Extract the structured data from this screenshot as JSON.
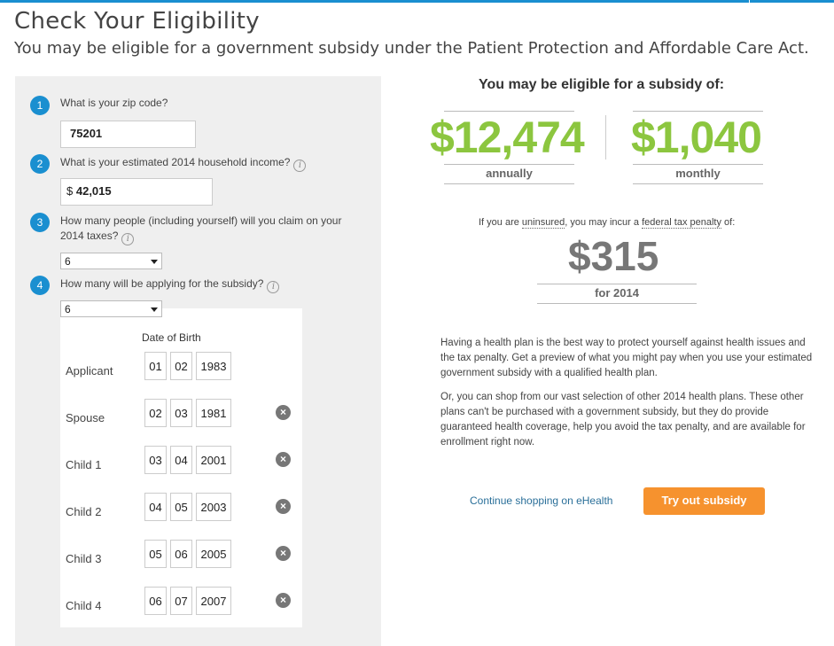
{
  "page": {
    "title": "Check Your Eligibility",
    "subtitle": "You may be eligible for a government subsidy under the Patient Protection and Affordable Care Act."
  },
  "form": {
    "q1": {
      "num": "1",
      "label": "What is your zip code?",
      "value": "75201"
    },
    "q2": {
      "num": "2",
      "label": "What is your estimated 2014 household income?",
      "currency": "$",
      "value": "42,015"
    },
    "q3": {
      "num": "3",
      "label_line1": "How many people (including yourself) will you claim on your",
      "label_line2": "2014 taxes?",
      "value": "6"
    },
    "q4": {
      "num": "4",
      "label": "How many will be applying for the subsidy?",
      "value": "6"
    },
    "info_glyph": "i",
    "dob_header": "Date of Birth",
    "remove_glyph": "×",
    "applicants": [
      {
        "label": "Applicant",
        "mm": "01",
        "dd": "02",
        "yyyy": "1983",
        "removable": false
      },
      {
        "label": "Spouse",
        "mm": "02",
        "dd": "03",
        "yyyy": "1981",
        "removable": true
      },
      {
        "label": "Child 1",
        "mm": "03",
        "dd": "04",
        "yyyy": "2001",
        "removable": true
      },
      {
        "label": "Child 2",
        "mm": "04",
        "dd": "05",
        "yyyy": "2003",
        "removable": true
      },
      {
        "label": "Child 3",
        "mm": "05",
        "dd": "06",
        "yyyy": "2005",
        "removable": true
      },
      {
        "label": "Child 4",
        "mm": "06",
        "dd": "07",
        "yyyy": "2007",
        "removable": true
      }
    ]
  },
  "result": {
    "heading": "You may be eligible for a subsidy of:",
    "annual_amount": "$12,474",
    "annual_label": "annually",
    "monthly_amount": "$1,040",
    "monthly_label": "monthly",
    "penalty_q_pre": "If you are ",
    "penalty_q_term": "uninsured",
    "penalty_q_mid": ", you may incur a ",
    "penalty_q_term2": "federal tax penalty",
    "penalty_q_post": " of:",
    "penalty_amount": "$315",
    "penalty_year": "for 2014",
    "para1": "Having a health plan is the best way to protect yourself against health issues and the tax penalty. Get a preview of what you might pay when you use your estimated government subsidy with a qualified health plan.",
    "para2": "Or, you can shop from our vast selection of other 2014 health plans. These other plans can't be purchased with a government subsidy, but they do provide guaranteed health coverage, help you avoid the tax penalty, and are available for enrollment right now.",
    "link": "Continue shopping on eHealth",
    "button": "Try out subsidy"
  },
  "colors": {
    "accent_blue": "#1a8fd0",
    "green": "#8cc63f",
    "orange": "#f6922e"
  }
}
